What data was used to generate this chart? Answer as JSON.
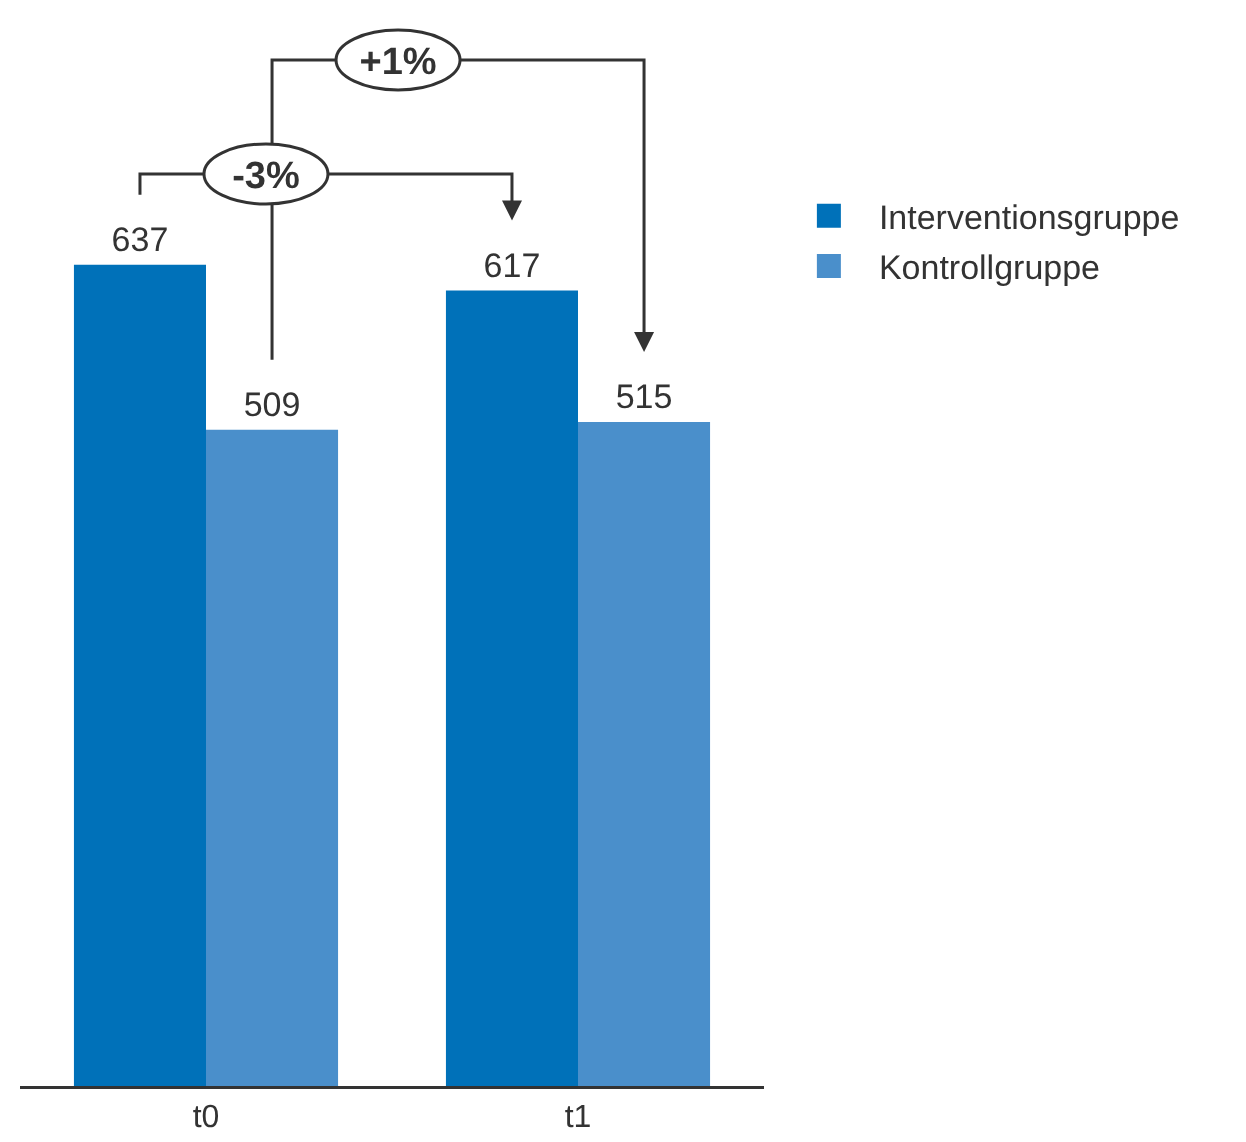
{
  "chart_data": {
    "type": "bar",
    "categories": [
      "t0",
      "t1"
    ],
    "series": [
      {
        "name": "Interventionsgruppe",
        "color": "#0071b9",
        "values": [
          637,
          617
        ]
      },
      {
        "name": "Kontrollgruppe",
        "color": "#4a8fcb",
        "values": [
          509,
          515
        ]
      }
    ],
    "data_labels": true,
    "legend": "right",
    "grid": false,
    "annotations": [
      "-3%",
      "+1%"
    ]
  }
}
